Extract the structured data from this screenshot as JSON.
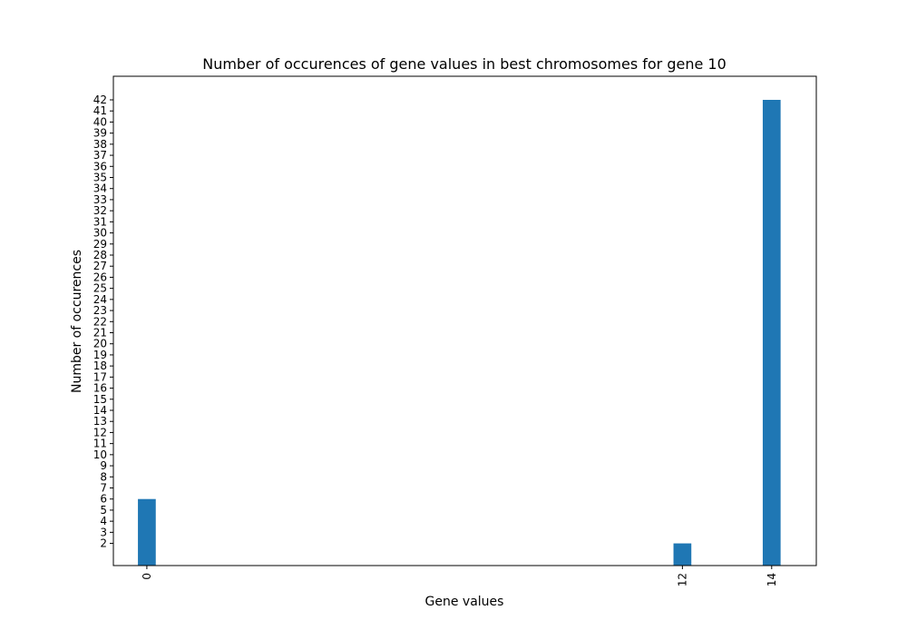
{
  "chart_data": {
    "type": "bar",
    "title": "Number of occurences of gene values in best chromosomes for gene 10",
    "xlabel": "Gene values",
    "ylabel": "Number of occurences",
    "x": [
      0,
      12,
      14
    ],
    "values": [
      6,
      2,
      42
    ],
    "xlim": [
      -0.75,
      15.0
    ],
    "ylim": [
      0,
      42
    ],
    "x_ticks": [
      "0",
      "12",
      "14"
    ],
    "x_tick_rotation": 90,
    "y_ticks": [
      2,
      3,
      4,
      5,
      6,
      7,
      8,
      9,
      10,
      11,
      12,
      13,
      14,
      15,
      16,
      17,
      18,
      19,
      20,
      21,
      22,
      23,
      24,
      25,
      26,
      27,
      28,
      29,
      30,
      31,
      32,
      33,
      34,
      35,
      36,
      37,
      38,
      39,
      40,
      41,
      42
    ],
    "bar_color": "#1f77b4",
    "grid": false,
    "legend": "none"
  }
}
